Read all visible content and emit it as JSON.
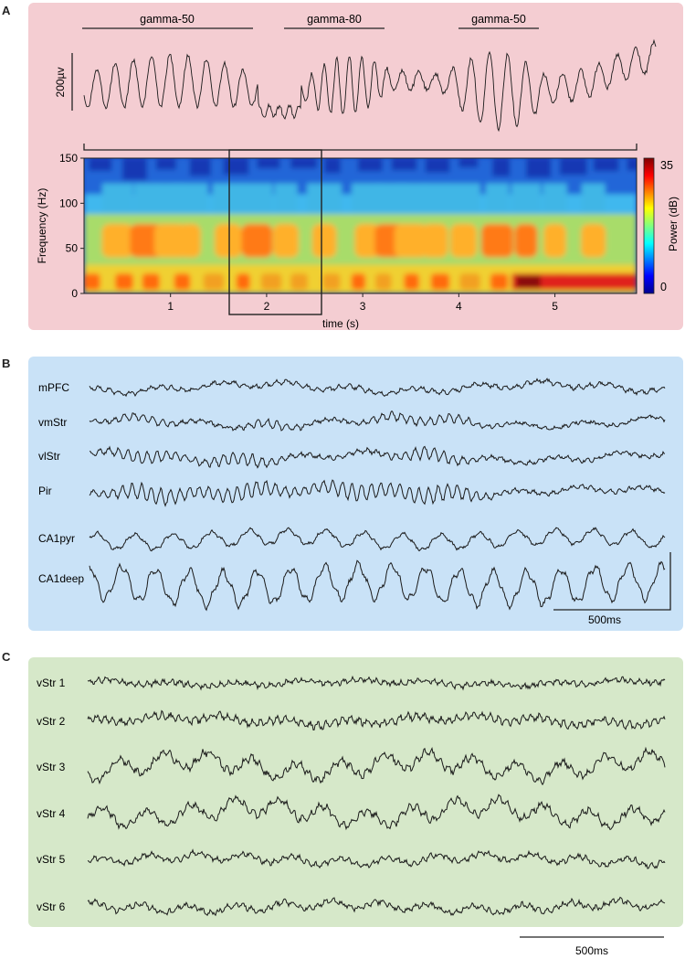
{
  "panels": {
    "a": "A",
    "b": "B",
    "c": "C"
  },
  "panelA": {
    "segments": [
      "gamma-50",
      "gamma-80",
      "gamma-50"
    ],
    "scale_bar": "200µv",
    "colorbar_max": "35",
    "colorbar_min": "0",
    "colorbar_label": "Power (dB)"
  },
  "chart_data": {
    "type": "heatmap",
    "xlabel": "time (s)",
    "ylabel": "Frequency (Hz)",
    "x_ticks": [
      "1",
      "2",
      "3",
      "4",
      "5"
    ],
    "y_ticks": [
      "150",
      "100",
      "50",
      "0"
    ],
    "ylim": [
      0,
      150
    ],
    "xlim": [
      0.1,
      5.85
    ],
    "clim": [
      0,
      35
    ],
    "colormap": "jet",
    "low_band_hz": [
      8,
      22
    ],
    "gamma_band_hz": [
      40,
      85
    ],
    "gamma_bursts_s": [
      0.45,
      0.75,
      1.0,
      1.2,
      1.6,
      1.9,
      2.2,
      2.6,
      3.05,
      3.3,
      3.5,
      3.75,
      4.05,
      4.4,
      4.7,
      5.0,
      5.4
    ]
  },
  "panelB": {
    "channels": [
      "mPFC",
      "vmStr",
      "vlStr",
      "Pir",
      "CA1pyr",
      "CA1deep"
    ],
    "scale_bar": "500ms"
  },
  "panelC": {
    "channels": [
      "vStr 1",
      "vStr 2",
      "vStr 3",
      "vStr 4",
      "vStr 5",
      "vStr 6"
    ],
    "scale_bar": "500ms"
  },
  "colors": {
    "panelA_bg": "#f4cdd2",
    "panelB_bg": "#c9e2f7",
    "panelC_bg": "#d6e8c9",
    "trace": "#1a1a1a"
  }
}
